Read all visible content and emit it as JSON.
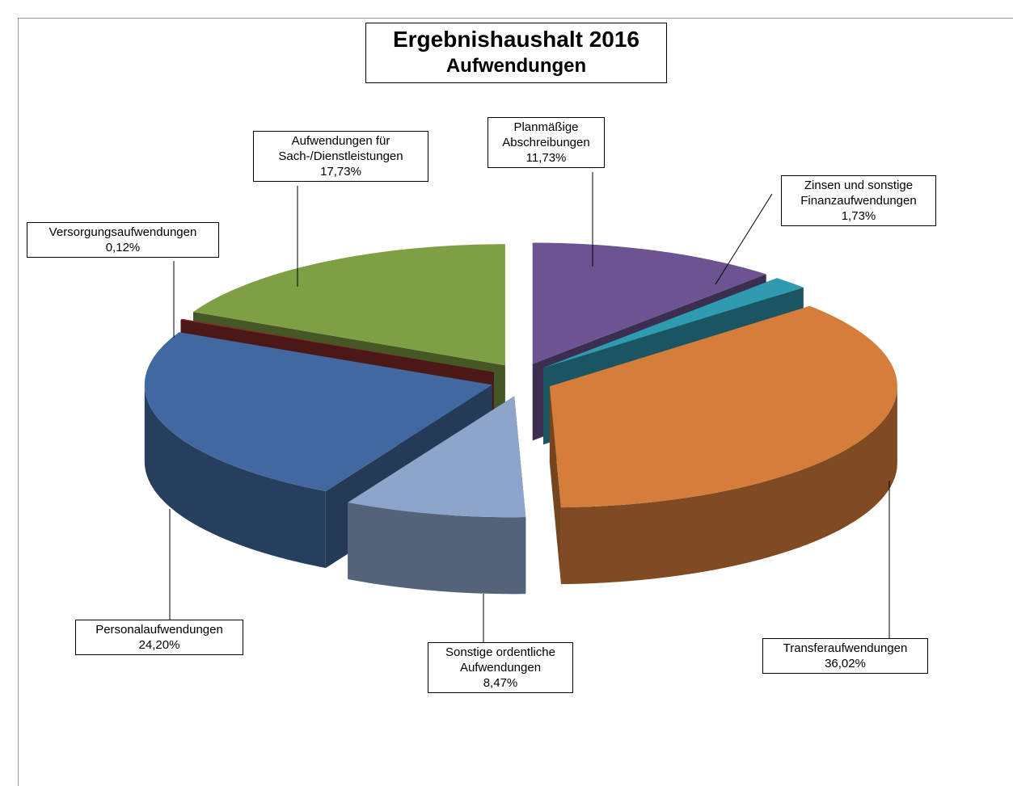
{
  "chart_data": {
    "type": "pie",
    "title": "Ergebnishaushalt 2016",
    "subtitle": "Aufwendungen",
    "categories": [
      "Planmäßige Abschreibungen",
      "Zinsen und sonstige Finanzaufwendungen",
      "Transferaufwendungen",
      "Sonstige ordentliche Aufwendungen",
      "Personalaufwendungen",
      "Versorgungsaufwendungen",
      "Aufwendungen für Sach-/Dienstleistungen"
    ],
    "values": [
      11.73,
      1.73,
      36.02,
      8.47,
      24.2,
      0.12,
      17.73
    ],
    "value_labels": [
      "11,73%",
      "1,73%",
      "36,02%",
      "8,47%",
      "24,20%",
      "0,12%",
      "17,73%"
    ],
    "colors": [
      "#6b5491",
      "#2f9bb0",
      "#d57d3a",
      "#8ea5cb",
      "#41699f",
      "#8b2a2a",
      "#7f9f45"
    ]
  }
}
